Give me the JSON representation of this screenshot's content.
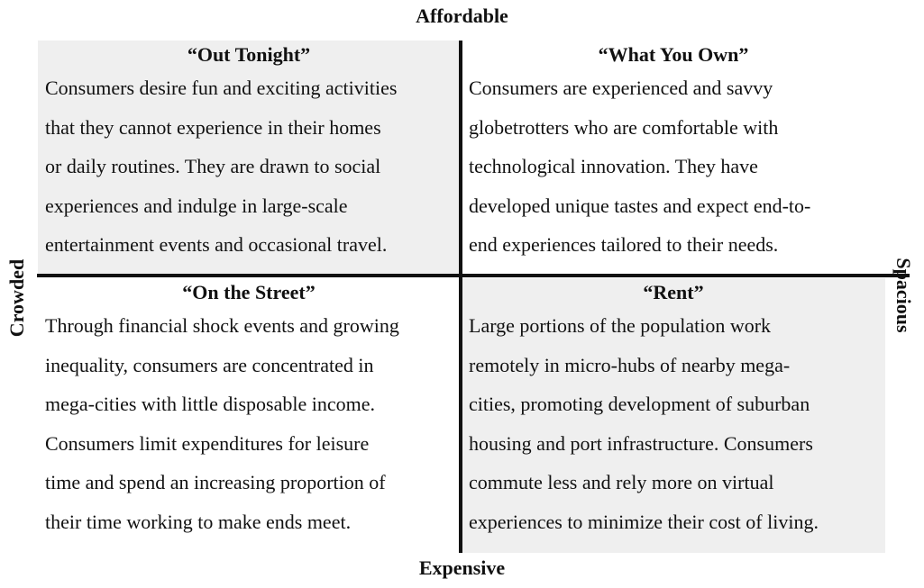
{
  "axes": {
    "top": "Affordable",
    "bottom": "Expensive",
    "left": "Crowded",
    "right": "Spacious"
  },
  "quadrants": {
    "top_left": {
      "title": "“Out Tonight”",
      "body": "Consumers desire fun and exciting activities\nthat they cannot experience in their homes\nor daily routines.  They are drawn to social\nexperiences and indulge in large-scale\nentertainment events and occasional travel."
    },
    "top_right": {
      "title": "“What You Own”",
      "body": "Consumers are experienced and savvy\nglobetrotters who are comfortable with\ntechnological innovation.  They have\ndeveloped unique tastes and expect end-to-\nend experiences tailored to their needs."
    },
    "bottom_left": {
      "title": "“On the Street”",
      "body": "Through financial shock events and growing\ninequality, consumers are concentrated in\nmega-cities with little disposable income.\nConsumers limit expenditures for leisure\ntime and spend an increasing proportion of\ntheir time working to make ends meet."
    },
    "bottom_right": {
      "title": "“Rent”",
      "body": "Large portions of the population work\nremotely in micro-hubs of nearby mega-\ncities, promoting development of suburban\nhousing and port infrastructure.  Consumers\ncommute less and rely more on virtual\nexperiences to minimize their cost of living."
    }
  },
  "colors": {
    "shaded_quadrant": "#efefef",
    "divider": "#111111"
  }
}
